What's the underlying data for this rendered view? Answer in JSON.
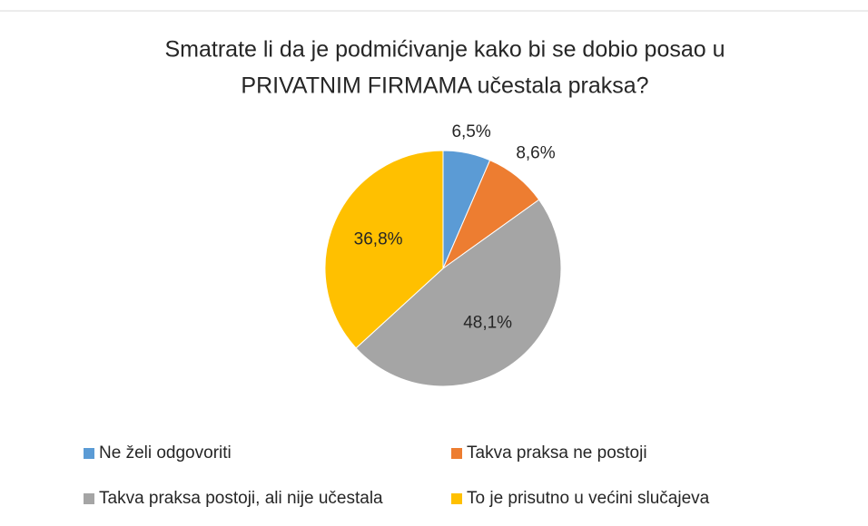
{
  "chart_data": {
    "type": "pie",
    "title": [
      "Smatrate li da je podmićivanje kako bi se dobio posao u",
      "PRIVATNIM FIRMAMA učestala praksa?"
    ],
    "categories": [
      "Ne želi odgovoriti",
      "Takva praksa ne postoji",
      "Takva praksa postoji, ali nije učestala",
      "To je prisutno u većini slučajeva"
    ],
    "values": [
      6.5,
      8.6,
      48.1,
      36.8
    ],
    "value_labels": [
      "6,5%",
      "8,6%",
      "48,1%",
      "36,8%"
    ],
    "colors": [
      "#5b9bd5",
      "#ed7d31",
      "#a5a5a5",
      "#ffc000"
    ]
  }
}
